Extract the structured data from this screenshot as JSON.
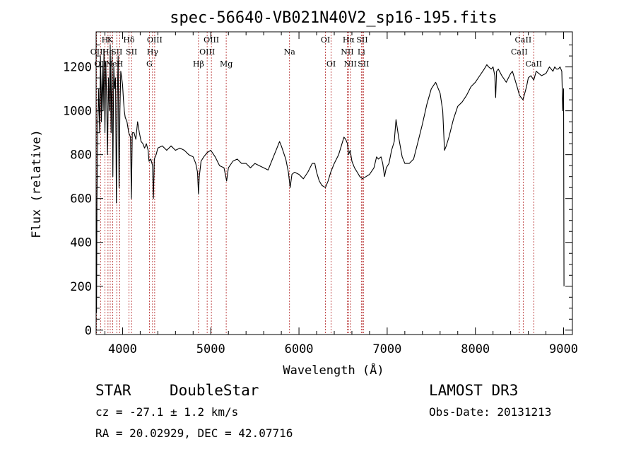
{
  "chart_data": {
    "type": "line",
    "title": "spec-56640-VB021N40V2_sp16-195.fits",
    "xlabel": "Wavelength (Å)",
    "ylabel": "Flux (relative)",
    "xlim": [
      3700,
      9100
    ],
    "ylim": [
      -20,
      1360
    ],
    "xticks": [
      4000,
      5000,
      6000,
      7000,
      8000,
      9000
    ],
    "yticks": [
      0,
      200,
      400,
      600,
      800,
      1000,
      1200
    ],
    "grid": false,
    "line_color": "#000000",
    "marker_color": "#b22222",
    "series": [
      {
        "points": [
          [
            3700,
            450
          ],
          [
            3705,
            80
          ],
          [
            3710,
            600
          ],
          [
            3720,
            950
          ],
          [
            3730,
            1100
          ],
          [
            3740,
            900
          ],
          [
            3750,
            1250
          ],
          [
            3760,
            950
          ],
          [
            3770,
            1200
          ],
          [
            3780,
            1000
          ],
          [
            3790,
            1280
          ],
          [
            3800,
            900
          ],
          [
            3810,
            1220
          ],
          [
            3820,
            1050
          ],
          [
            3830,
            800
          ],
          [
            3840,
            1150
          ],
          [
            3850,
            1000
          ],
          [
            3860,
            1300
          ],
          [
            3870,
            900
          ],
          [
            3880,
            1250
          ],
          [
            3890,
            700
          ],
          [
            3900,
            1200
          ],
          [
            3910,
            1100
          ],
          [
            3920,
            1150
          ],
          [
            3930,
            580
          ],
          [
            3940,
            1050
          ],
          [
            3950,
            1250
          ],
          [
            3960,
            650
          ],
          [
            3970,
            1000
          ],
          [
            3980,
            1180
          ],
          [
            3990,
            1150
          ],
          [
            4000,
            1120
          ],
          [
            4010,
            1050
          ],
          [
            4020,
            1000
          ],
          [
            4030,
            970
          ],
          [
            4050,
            950
          ],
          [
            4070,
            900
          ],
          [
            4090,
            880
          ],
          [
            4100,
            600
          ],
          [
            4110,
            900
          ],
          [
            4130,
            900
          ],
          [
            4150,
            870
          ],
          [
            4170,
            950
          ],
          [
            4190,
            900
          ],
          [
            4210,
            860
          ],
          [
            4230,
            850
          ],
          [
            4250,
            830
          ],
          [
            4270,
            850
          ],
          [
            4290,
            820
          ],
          [
            4300,
            770
          ],
          [
            4320,
            780
          ],
          [
            4340,
            750
          ],
          [
            4350,
            600
          ],
          [
            4360,
            780
          ],
          [
            4380,
            800
          ],
          [
            4400,
            830
          ],
          [
            4450,
            840
          ],
          [
            4500,
            820
          ],
          [
            4550,
            840
          ],
          [
            4600,
            820
          ],
          [
            4650,
            830
          ],
          [
            4700,
            820
          ],
          [
            4750,
            800
          ],
          [
            4800,
            790
          ],
          [
            4830,
            760
          ],
          [
            4850,
            720
          ],
          [
            4861,
            620
          ],
          [
            4870,
            700
          ],
          [
            4890,
            770
          ],
          [
            4920,
            790
          ],
          [
            4960,
            810
          ],
          [
            5000,
            820
          ],
          [
            5050,
            790
          ],
          [
            5100,
            750
          ],
          [
            5150,
            740
          ],
          [
            5180,
            680
          ],
          [
            5200,
            740
          ],
          [
            5250,
            770
          ],
          [
            5300,
            780
          ],
          [
            5350,
            760
          ],
          [
            5400,
            760
          ],
          [
            5450,
            740
          ],
          [
            5500,
            760
          ],
          [
            5550,
            750
          ],
          [
            5600,
            740
          ],
          [
            5650,
            730
          ],
          [
            5700,
            780
          ],
          [
            5750,
            830
          ],
          [
            5780,
            860
          ],
          [
            5800,
            840
          ],
          [
            5850,
            780
          ],
          [
            5880,
            720
          ],
          [
            5900,
            650
          ],
          [
            5920,
            710
          ],
          [
            5950,
            720
          ],
          [
            6000,
            710
          ],
          [
            6050,
            690
          ],
          [
            6100,
            720
          ],
          [
            6150,
            760
          ],
          [
            6180,
            760
          ],
          [
            6200,
            720
          ],
          [
            6230,
            680
          ],
          [
            6260,
            660
          ],
          [
            6300,
            650
          ],
          [
            6330,
            680
          ],
          [
            6360,
            720
          ],
          [
            6400,
            760
          ],
          [
            6450,
            800
          ],
          [
            6480,
            840
          ],
          [
            6510,
            880
          ],
          [
            6530,
            870
          ],
          [
            6550,
            850
          ],
          [
            6563,
            800
          ],
          [
            6580,
            820
          ],
          [
            6600,
            770
          ],
          [
            6630,
            740
          ],
          [
            6660,
            720
          ],
          [
            6690,
            700
          ],
          [
            6720,
            690
          ],
          [
            6760,
            700
          ],
          [
            6800,
            710
          ],
          [
            6850,
            740
          ],
          [
            6880,
            790
          ],
          [
            6900,
            780
          ],
          [
            6930,
            790
          ],
          [
            6950,
            760
          ],
          [
            6970,
            700
          ],
          [
            6990,
            740
          ],
          [
            7020,
            760
          ],
          [
            7050,
            820
          ],
          [
            7080,
            860
          ],
          [
            7100,
            960
          ],
          [
            7130,
            880
          ],
          [
            7170,
            790
          ],
          [
            7200,
            760
          ],
          [
            7250,
            760
          ],
          [
            7300,
            780
          ],
          [
            7350,
            860
          ],
          [
            7400,
            940
          ],
          [
            7450,
            1030
          ],
          [
            7500,
            1100
          ],
          [
            7550,
            1130
          ],
          [
            7600,
            1080
          ],
          [
            7630,
            1000
          ],
          [
            7650,
            820
          ],
          [
            7670,
            840
          ],
          [
            7700,
            880
          ],
          [
            7750,
            960
          ],
          [
            7800,
            1020
          ],
          [
            7850,
            1040
          ],
          [
            7900,
            1070
          ],
          [
            7950,
            1110
          ],
          [
            8000,
            1130
          ],
          [
            8050,
            1160
          ],
          [
            8100,
            1190
          ],
          [
            8130,
            1210
          ],
          [
            8150,
            1200
          ],
          [
            8180,
            1190
          ],
          [
            8200,
            1200
          ],
          [
            8220,
            1160
          ],
          [
            8230,
            1060
          ],
          [
            8240,
            1180
          ],
          [
            8260,
            1190
          ],
          [
            8300,
            1160
          ],
          [
            8350,
            1130
          ],
          [
            8400,
            1170
          ],
          [
            8420,
            1180
          ],
          [
            8450,
            1140
          ],
          [
            8480,
            1100
          ],
          [
            8500,
            1070
          ],
          [
            8520,
            1060
          ],
          [
            8540,
            1050
          ],
          [
            8560,
            1080
          ],
          [
            8580,
            1110
          ],
          [
            8600,
            1150
          ],
          [
            8630,
            1160
          ],
          [
            8662,
            1140
          ],
          [
            8690,
            1180
          ],
          [
            8720,
            1170
          ],
          [
            8750,
            1160
          ],
          [
            8800,
            1170
          ],
          [
            8840,
            1200
          ],
          [
            8860,
            1190
          ],
          [
            8880,
            1180
          ],
          [
            8900,
            1200
          ],
          [
            8920,
            1190
          ],
          [
            8940,
            1190
          ],
          [
            8960,
            1200
          ],
          [
            8980,
            1180
          ],
          [
            8990,
            1000
          ],
          [
            9000,
            1100
          ],
          [
            9005,
            200
          ]
        ]
      }
    ],
    "lines": [
      {
        "wl": 3705,
        "label": "OII",
        "row": 1
      },
      {
        "wl": 3750,
        "label": "OII",
        "row": 2
      },
      {
        "wl": 3800,
        "label": "H",
        "row": 0
      },
      {
        "wl": 3835,
        "label": "He",
        "row": 1
      },
      {
        "wl": 3860,
        "label": "K",
        "row": 0
      },
      {
        "wl": 3889,
        "label": "NeI",
        "row": 2
      },
      {
        "wl": 3934,
        "label": "SII",
        "row": 1
      },
      {
        "wl": 3968,
        "label": "H",
        "row": 2
      },
      {
        "wl": 4072,
        "label": "Hδ",
        "row": 0
      },
      {
        "wl": 4102,
        "label": "SII",
        "row": 1
      },
      {
        "wl": 4304,
        "label": "G",
        "row": 2
      },
      {
        "wl": 4340,
        "label": "Hγ",
        "row": 1
      },
      {
        "wl": 4364,
        "label": "OIII",
        "row": 0
      },
      {
        "wl": 4861,
        "label": "Hβ",
        "row": 2
      },
      {
        "wl": 4959,
        "label": "OIII",
        "row": 1
      },
      {
        "wl": 5007,
        "label": "OIII",
        "row": 0
      },
      {
        "wl": 5175,
        "label": "Mg",
        "row": 2
      },
      {
        "wl": 5893,
        "label": "Na",
        "row": 1
      },
      {
        "wl": 6300,
        "label": "OI",
        "row": 0
      },
      {
        "wl": 6364,
        "label": "OI",
        "row": 2
      },
      {
        "wl": 6548,
        "label": "NII",
        "row": 1
      },
      {
        "wl": 6563,
        "label": "Hα",
        "row": 0
      },
      {
        "wl": 6583,
        "label": "NII",
        "row": 2
      },
      {
        "wl": 6707,
        "label": "Li",
        "row": 1
      },
      {
        "wl": 6716,
        "label": "SII",
        "row": 0
      },
      {
        "wl": 6731,
        "label": "SII",
        "row": 2
      },
      {
        "wl": 8498,
        "label": "CaII",
        "row": 1
      },
      {
        "wl": 8542,
        "label": "CaII",
        "row": 0
      },
      {
        "wl": 8662,
        "label": "CaII",
        "row": 2
      }
    ]
  },
  "info": {
    "class": "STAR",
    "subclass": "DoubleStar",
    "survey": "LAMOST DR3",
    "cz": "cz = -27.1 ± 1.2 km/s",
    "obs_date": "Obs-Date: 20131213",
    "coords": "RA =  20.02929, DEC =  42.07716"
  }
}
